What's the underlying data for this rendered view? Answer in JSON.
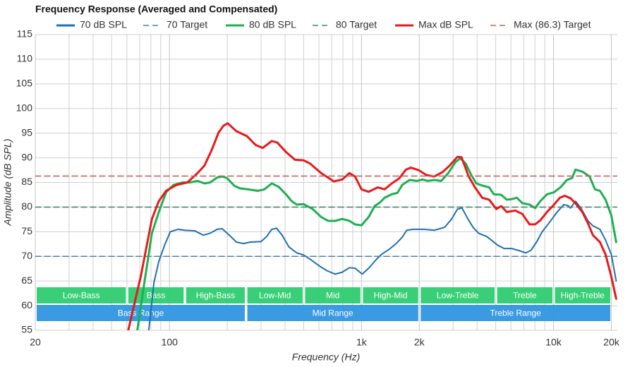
{
  "chart_data": {
    "type": "line",
    "title": "Frequency Response (Averaged and Compensated)",
    "x_label": "Frequency (Hz)",
    "y_label": "Amplitude (dB SPL)",
    "xscale": "log",
    "xlim": [
      20,
      21500
    ],
    "ylim": [
      55,
      115
    ],
    "xticks": [
      20,
      100,
      {
        "value": 1000,
        "label": "1k"
      },
      {
        "value": 2000,
        "label": "2k"
      },
      {
        "value": 10000,
        "label": "10k"
      },
      {
        "value": 20000,
        "label": "20k"
      }
    ],
    "x_minor_ticks": [
      30,
      40,
      50,
      60,
      70,
      80,
      90,
      200,
      300,
      400,
      500,
      600,
      700,
      800,
      900,
      3000,
      4000,
      5000,
      6000,
      7000,
      8000,
      9000
    ],
    "yticks": [
      55,
      60,
      65,
      70,
      75,
      80,
      85,
      90,
      95,
      100,
      105,
      110,
      115
    ],
    "grid": true,
    "legend": "top",
    "series": [
      {
        "name": "70 dB SPL",
        "color": "#1f6fb2",
        "dashed": false,
        "x": [
          78,
          83,
          88,
          95,
          101,
          111,
          120,
          135,
          150,
          163,
          177,
          188,
          205,
          223,
          243,
          264,
          300,
          320,
          341,
          361,
          386,
          419,
          460,
          499,
          541,
          606,
          660,
          730,
          794,
          865,
          925,
          1008,
          1090,
          1190,
          1270,
          1390,
          1515,
          1630,
          1720,
          1860,
          2120,
          2390,
          2710,
          2950,
          3160,
          3340,
          3580,
          3810,
          4070,
          4500,
          4780,
          5100,
          5530,
          6040,
          6580,
          7160,
          7620,
          8160,
          8730,
          9530,
          10440,
          11310,
          11920,
          12240,
          13000,
          13900,
          15120,
          16030,
          17440,
          18660,
          20000,
          21200
        ],
        "values": [
          55,
          64.7,
          69,
          72.6,
          75,
          75.5,
          75.3,
          75.2,
          74.3,
          74.7,
          75.5,
          75.6,
          74.3,
          72.9,
          72.6,
          72.9,
          73,
          74,
          75.5,
          75.7,
          74.3,
          71.9,
          70.7,
          70.3,
          69.4,
          68,
          67.1,
          66.4,
          66.8,
          67.7,
          67.6,
          66.4,
          67.6,
          69.3,
          70.4,
          71.4,
          72.6,
          73.9,
          75.3,
          75.5,
          75.5,
          75.3,
          75.9,
          77.6,
          79.6,
          79.8,
          77.6,
          75.9,
          74.7,
          74,
          73.2,
          72.3,
          71.6,
          71.6,
          71.2,
          70.7,
          71.2,
          72.9,
          75,
          76.9,
          79,
          80.5,
          80.3,
          79.8,
          81.2,
          79.8,
          77.2,
          76.2,
          75.5,
          73.3,
          70.4,
          65
        ]
      },
      {
        "name": "70 Target",
        "color": "#4f7fa6",
        "dashed": true,
        "x": [
          20,
          21500
        ],
        "values": [
          70,
          70
        ]
      },
      {
        "name": "80 dB SPL",
        "color": "#1cb050",
        "dashed": false,
        "x": [
          68,
          74,
          81,
          88,
          96,
          105,
          117,
          128,
          140,
          152,
          163,
          177,
          188,
          199,
          218,
          233,
          256,
          288,
          312,
          341,
          371,
          404,
          433,
          460,
          499,
          557,
          616,
          670,
          730,
          794,
          865,
          925,
          1000,
          1090,
          1170,
          1245,
          1320,
          1438,
          1540,
          1630,
          1780,
          1940,
          2080,
          2215,
          2390,
          2600,
          2830,
          3080,
          3270,
          3490,
          3730,
          3960,
          4310,
          4620,
          4890,
          5340,
          5710,
          6040,
          6440,
          6880,
          7500,
          8030,
          8530,
          9250,
          10060,
          10930,
          11740,
          12510,
          13000,
          14130,
          15410,
          16440,
          17440,
          18660,
          20000,
          21200
        ],
        "values": [
          55,
          64.7,
          74.7,
          79,
          83,
          84.5,
          85,
          85,
          85.3,
          84.8,
          85,
          86,
          86.2,
          85.9,
          84.3,
          83.8,
          83.6,
          83.3,
          83.6,
          84.8,
          84.1,
          82.6,
          81.2,
          80.5,
          80.6,
          79.6,
          78,
          77.2,
          77.2,
          77.6,
          77.2,
          76.5,
          76.3,
          78,
          80.2,
          80.9,
          81.9,
          82.6,
          82.9,
          84.5,
          85.5,
          85.3,
          85.6,
          85.3,
          85.5,
          85.3,
          86.9,
          89.1,
          89.9,
          88.8,
          86.5,
          84.8,
          84.3,
          84,
          82.6,
          82.5,
          81.5,
          81.6,
          81.9,
          80.8,
          80.5,
          79.8,
          81.2,
          82.6,
          83,
          84.1,
          85.5,
          85.9,
          87.6,
          87.2,
          86.2,
          83.6,
          83.3,
          81.5,
          78.3,
          72.9
        ]
      },
      {
        "name": "80 Target",
        "color": "#3f8a6c",
        "dashed": true,
        "x": [
          20,
          21500
        ],
        "values": [
          80,
          80
        ]
      },
      {
        "name": "Max dB SPL",
        "color": "#e8191b",
        "dashed": false,
        "x": [
          61,
          71,
          81,
          88,
          96,
          109,
          124,
          140,
          152,
          166,
          180,
          191,
          201,
          223,
          253,
          281,
          306,
          341,
          364,
          404,
          450,
          499,
          541,
          616,
          718,
          794,
          865,
          925,
          1000,
          1090,
          1214,
          1320,
          1438,
          1570,
          1703,
          1808,
          1982,
          2178,
          2390,
          2643,
          2875,
          3160,
          3320,
          3615,
          3900,
          4250,
          4620,
          5035,
          5340,
          5710,
          6320,
          6880,
          7500,
          8030,
          8530,
          9250,
          10060,
          10790,
          11440,
          12240,
          12990,
          14130,
          15120,
          16030,
          17440,
          18660,
          20000,
          21200
        ],
        "values": [
          55,
          66.1,
          77.6,
          81.2,
          83.3,
          84.5,
          85,
          86.9,
          88.4,
          91.6,
          95.1,
          96.5,
          97,
          95.4,
          94.4,
          92.6,
          92,
          93.4,
          93.1,
          91.2,
          89.6,
          89.5,
          88.8,
          86.9,
          85.2,
          85.6,
          86.9,
          86.2,
          83.6,
          83.1,
          84,
          83.6,
          84.8,
          85.8,
          87.6,
          88,
          87.5,
          86.5,
          86.2,
          87.1,
          88.4,
          90.2,
          90.1,
          86.2,
          84,
          81.9,
          81.5,
          79.6,
          80.2,
          79,
          79.3,
          78.6,
          76.5,
          76.5,
          77.3,
          79,
          80.5,
          81.9,
          82.3,
          81.8,
          80.8,
          79,
          76.7,
          74.3,
          72.9,
          70.4,
          65.9,
          61.4
        ]
      },
      {
        "name": "Max (86.3) Target",
        "color": "#c06464",
        "dashed": true,
        "x": [
          20,
          21500
        ],
        "values": [
          86.3,
          86.3
        ]
      }
    ],
    "bands": [
      {
        "label": "Low-Bass",
        "from": 20,
        "to": 60
      },
      {
        "label": "Bass",
        "from": 60,
        "to": 120
      },
      {
        "label": "High-Bass",
        "from": 120,
        "to": 250
      },
      {
        "label": "Low-Mid",
        "from": 250,
        "to": 500
      },
      {
        "label": "Mid",
        "from": 500,
        "to": 1000
      },
      {
        "label": "High-Mid",
        "from": 1000,
        "to": 2000
      },
      {
        "label": "Low-Treble",
        "from": 2000,
        "to": 5000
      },
      {
        "label": "Treble",
        "from": 5000,
        "to": 10000
      },
      {
        "label": "High-Treble",
        "from": 10000,
        "to": 20000
      }
    ],
    "band_color": "#2ecc71",
    "ranges": [
      {
        "label": "Bass Range",
        "from": 20,
        "to": 250
      },
      {
        "label": "Mid Range",
        "from": 250,
        "to": 2000
      },
      {
        "label": "Treble Range",
        "from": 2000,
        "to": 20000
      }
    ],
    "range_color": "#2f95e0"
  }
}
